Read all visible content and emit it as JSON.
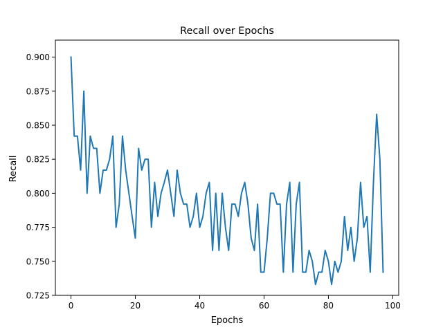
{
  "chart_data": {
    "type": "line",
    "title": "Recall over Epochs",
    "xlabel": "Epochs",
    "ylabel": "Recall",
    "xlim": [
      -4.85,
      101.85
    ],
    "ylim": [
      0.725,
      0.9125
    ],
    "xticks": [
      0,
      20,
      40,
      60,
      80,
      100
    ],
    "xtick_labels": [
      "0",
      "20",
      "40",
      "60",
      "80",
      "100"
    ],
    "yticks": [
      0.725,
      0.75,
      0.775,
      0.8,
      0.825,
      0.85,
      0.875,
      0.9
    ],
    "ytick_labels": [
      "0.725",
      "0.750",
      "0.775",
      "0.800",
      "0.825",
      "0.850",
      "0.875",
      "0.900"
    ],
    "grid": false,
    "series": [
      {
        "color": "#1f77b4",
        "x": [
          0,
          1,
          2,
          3,
          4,
          5,
          6,
          7,
          8,
          9,
          10,
          11,
          12,
          13,
          14,
          15,
          16,
          17,
          18,
          19,
          20,
          21,
          22,
          23,
          24,
          25,
          26,
          27,
          28,
          29,
          30,
          31,
          32,
          33,
          34,
          35,
          36,
          37,
          38,
          39,
          40,
          41,
          42,
          43,
          44,
          45,
          46,
          47,
          48,
          49,
          50,
          51,
          52,
          53,
          54,
          55,
          56,
          57,
          58,
          59,
          60,
          61,
          62,
          63,
          64,
          65,
          66,
          67,
          68,
          69,
          70,
          71,
          72,
          73,
          74,
          75,
          76,
          77,
          78,
          79,
          80,
          81,
          82,
          83,
          84,
          85,
          86,
          87,
          88,
          89,
          90,
          91,
          92,
          93,
          94,
          95,
          96,
          97
        ],
        "y": [
          0.9,
          0.842,
          0.842,
          0.817,
          0.875,
          0.8,
          0.842,
          0.833,
          0.833,
          0.8,
          0.817,
          0.817,
          0.825,
          0.842,
          0.775,
          0.792,
          0.842,
          0.817,
          0.8,
          0.783,
          0.767,
          0.833,
          0.817,
          0.825,
          0.825,
          0.775,
          0.808,
          0.783,
          0.8,
          0.808,
          0.817,
          0.8,
          0.783,
          0.817,
          0.8,
          0.792,
          0.792,
          0.775,
          0.783,
          0.8,
          0.775,
          0.783,
          0.8,
          0.808,
          0.758,
          0.8,
          0.758,
          0.8,
          0.775,
          0.758,
          0.792,
          0.792,
          0.783,
          0.8,
          0.808,
          0.792,
          0.767,
          0.758,
          0.792,
          0.742,
          0.742,
          0.767,
          0.8,
          0.8,
          0.792,
          0.792,
          0.742,
          0.792,
          0.808,
          0.742,
          0.792,
          0.808,
          0.742,
          0.742,
          0.758,
          0.75,
          0.733,
          0.742,
          0.742,
          0.758,
          0.75,
          0.733,
          0.75,
          0.742,
          0.75,
          0.783,
          0.758,
          0.775,
          0.75,
          0.767,
          0.808,
          0.775,
          0.783,
          0.742,
          0.808,
          0.858,
          0.825,
          0.742
        ]
      }
    ]
  }
}
